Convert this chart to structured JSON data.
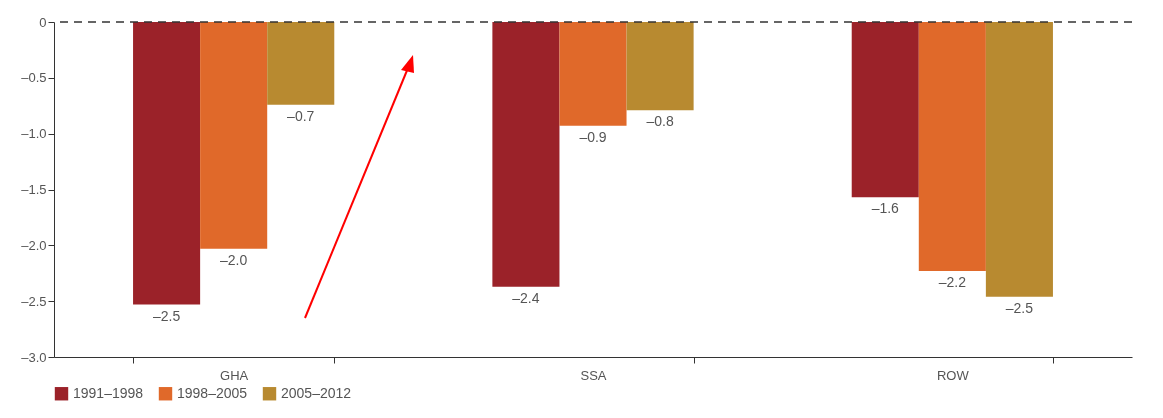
{
  "chart_data": {
    "type": "bar",
    "categories": [
      "GHA",
      "SSA",
      "ROW"
    ],
    "series": [
      {
        "name": "1991–1998",
        "color": "#9b2229",
        "values": [
          -2.53,
          -2.37,
          -1.57
        ],
        "value_labels": [
          "–2.5",
          "–2.4",
          "–1.6"
        ]
      },
      {
        "name": "1998–2005",
        "color": "#e0692a",
        "values": [
          -2.03,
          -0.93,
          -2.23
        ],
        "value_labels": [
          "–2.0",
          "–0.9",
          "–2.2"
        ]
      },
      {
        "name": "2005–2012",
        "color": "#b88a30",
        "values": [
          -0.74,
          -0.79,
          -2.46
        ],
        "value_labels": [
          "–0.7",
          "–0.8",
          "–2.5"
        ]
      }
    ],
    "ylim": [
      -3.0,
      0
    ],
    "yticks": [
      {
        "value": -3.0,
        "label": "–3.0"
      },
      {
        "value": -2.5,
        "label": "–2.5"
      },
      {
        "value": -2.0,
        "label": "–2.0"
      },
      {
        "value": -1.5,
        "label": "–1.5"
      },
      {
        "value": -1.0,
        "label": "–1.0"
      },
      {
        "value": -0.5,
        "label": "–0.5"
      },
      0
    ],
    "ref_lines": [
      {
        "axis": "y",
        "value": 0,
        "line_style": "dashed",
        "color": "#333333"
      }
    ],
    "legend": "bottom",
    "grid": false
  }
}
